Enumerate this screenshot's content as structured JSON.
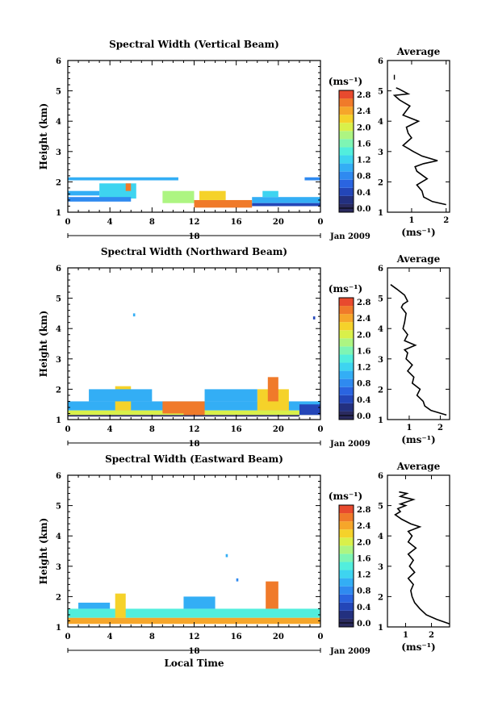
{
  "chart_data": [
    {
      "type": "heatmap",
      "title": "Spectral Width (Vertical Beam)",
      "ylabel": "Height (km)",
      "xlabel": "",
      "xticks": [
        "0",
        "4",
        "8",
        "12",
        "16",
        "20",
        "0"
      ],
      "yticks": [
        "1",
        "2",
        "3",
        "4",
        "5",
        "6"
      ],
      "xlim": [
        0,
        24
      ],
      "ylim": [
        1,
        6
      ],
      "date_axis_label": "18",
      "date_suffix": "Jan 2009",
      "colorbar": {
        "unit": "(ms⁻¹)",
        "ticks": [
          "2.8",
          "2.4",
          "2.0",
          "1.6",
          "1.2",
          "0.8",
          "0.4",
          "0.0"
        ],
        "range": [
          0,
          3.0
        ]
      },
      "cells": [
        {
          "t0": 0,
          "t1": 10.5,
          "h0": 2.05,
          "h1": 2.15,
          "v": 1.0
        },
        {
          "t0": 0,
          "t1": 3,
          "h0": 1.55,
          "h1": 1.7,
          "v": 1.1
        },
        {
          "t0": 3,
          "t1": 6.5,
          "h0": 1.45,
          "h1": 1.95,
          "v": 1.4
        },
        {
          "t0": 5.5,
          "t1": 6,
          "h0": 1.7,
          "h1": 1.95,
          "v": 2.6
        },
        {
          "t0": 0,
          "t1": 6,
          "h0": 1.35,
          "h1": 1.5,
          "v": 0.9
        },
        {
          "t0": 9,
          "t1": 12,
          "h0": 1.3,
          "h1": 1.7,
          "v": 1.8
        },
        {
          "t0": 12,
          "t1": 17.5,
          "h0": 1.15,
          "h1": 1.4,
          "v": 2.8
        },
        {
          "t0": 12.5,
          "t1": 15,
          "h0": 1.4,
          "h1": 1.7,
          "v": 2.2
        },
        {
          "t0": 17.5,
          "t1": 24,
          "h0": 1.3,
          "h1": 1.5,
          "v": 1.1
        },
        {
          "t0": 17.5,
          "t1": 24,
          "h0": 1.2,
          "h1": 1.3,
          "v": 0.6
        },
        {
          "t0": 22.5,
          "t1": 24,
          "h0": 2.05,
          "h1": 2.15,
          "v": 0.8
        },
        {
          "t0": 18.5,
          "t1": 20,
          "h0": 1.5,
          "h1": 1.7,
          "v": 1.3
        }
      ],
      "average": {
        "title": "Average",
        "xlabel": "(ms⁻¹)",
        "xticks": [
          "1",
          "2"
        ],
        "xlim": [
          0.3,
          2.1
        ],
        "yticks": [
          "1",
          "2",
          "3",
          "4",
          "5",
          "6"
        ],
        "x": [
          2.0,
          1.6,
          1.35,
          1.3,
          1.15,
          1.45,
          1.15,
          1.1,
          1.35,
          1.75,
          1.3,
          1.05,
          0.75,
          1.0,
          0.9,
          0.85,
          1.2,
          0.75,
          0.95,
          0.65,
          0.5,
          0.9,
          0.65,
          0.55
        ],
        "y": [
          1.25,
          1.35,
          1.5,
          1.7,
          1.9,
          2.1,
          2.35,
          2.5,
          2.6,
          2.7,
          2.85,
          3.0,
          3.2,
          3.45,
          3.6,
          3.8,
          4.0,
          4.2,
          4.5,
          4.7,
          4.85,
          4.9,
          5.05,
          5.1
        ],
        "extra_mark": {
          "x": 0.5,
          "y": 5.45
        }
      }
    },
    {
      "type": "heatmap",
      "title": "Spectral Width (Northward Beam)",
      "ylabel": "Height (km)",
      "xlabel": "",
      "xticks": [
        "0",
        "4",
        "8",
        "12",
        "16",
        "20",
        "0"
      ],
      "yticks": [
        "1",
        "2",
        "3",
        "4",
        "5",
        "6"
      ],
      "xlim": [
        0,
        24
      ],
      "ylim": [
        1,
        6
      ],
      "date_axis_label": "18",
      "date_suffix": "Jan 2009",
      "colorbar": {
        "unit": "(ms⁻¹)",
        "ticks": [
          "2.8",
          "2.4",
          "2.0",
          "1.6",
          "1.2",
          "0.8",
          "0.4",
          "0.0"
        ],
        "range": [
          0,
          3.0
        ]
      },
      "cells": [
        {
          "t0": 0,
          "t1": 24,
          "h0": 1.3,
          "h1": 1.6,
          "v": 1.2
        },
        {
          "t0": 0,
          "t1": 24,
          "h0": 1.15,
          "h1": 1.3,
          "v": 2.0
        },
        {
          "t0": 0,
          "t1": 22,
          "h0": 1.1,
          "h1": 1.15,
          "v": 0.0
        },
        {
          "t0": 4.5,
          "t1": 6,
          "h0": 1.3,
          "h1": 2.1,
          "v": 2.3
        },
        {
          "t0": 9,
          "t1": 13,
          "h0": 1.2,
          "h1": 1.6,
          "v": 2.6
        },
        {
          "t0": 11,
          "t1": 13,
          "h0": 1.15,
          "h1": 1.4,
          "v": 2.8
        },
        {
          "t0": 18,
          "t1": 21,
          "h0": 1.3,
          "h1": 2.0,
          "v": 2.2
        },
        {
          "t0": 19,
          "t1": 20,
          "h0": 1.6,
          "h1": 2.4,
          "v": 2.6
        },
        {
          "t0": 2,
          "t1": 8,
          "h0": 1.6,
          "h1": 2.0,
          "v": 1.0
        },
        {
          "t0": 13,
          "t1": 18,
          "h0": 1.6,
          "h1": 2.0,
          "v": 1.1
        },
        {
          "t0": 6.2,
          "t1": 6.4,
          "h0": 4.4,
          "h1": 4.5,
          "v": 1.1
        },
        {
          "t0": 23.3,
          "t1": 23.5,
          "h0": 4.3,
          "h1": 4.4,
          "v": 0.4
        },
        {
          "t0": 22,
          "t1": 24,
          "h0": 1.15,
          "h1": 1.5,
          "v": 0.6
        }
      ],
      "average": {
        "title": "Average",
        "xlabel": "(ms⁻¹)",
        "xticks": [
          "1",
          "2"
        ],
        "xlim": [
          0.3,
          2.3
        ],
        "yticks": [
          "1",
          "2",
          "3",
          "4",
          "5",
          "6"
        ],
        "x": [
          2.2,
          1.7,
          1.5,
          1.45,
          1.25,
          1.35,
          1.1,
          1.15,
          0.95,
          1.1,
          0.9,
          0.95,
          0.85,
          1.2,
          0.85,
          0.95,
          0.8,
          0.85,
          0.9,
          0.75,
          0.8,
          0.95,
          0.85,
          0.6,
          0.4
        ],
        "y": [
          1.15,
          1.3,
          1.45,
          1.6,
          1.8,
          2.0,
          2.2,
          2.4,
          2.6,
          2.8,
          3.0,
          3.2,
          3.3,
          3.45,
          3.6,
          3.8,
          4.0,
          4.2,
          4.5,
          4.7,
          4.8,
          4.9,
          5.1,
          5.3,
          5.45
        ]
      }
    },
    {
      "type": "heatmap",
      "title": "Spectral Width (Eastward Beam)",
      "ylabel": "Height (km)",
      "xlabel": "Local Time",
      "xticks": [
        "0",
        "4",
        "8",
        "12",
        "16",
        "20",
        "0"
      ],
      "yticks": [
        "1",
        "2",
        "3",
        "4",
        "5",
        "6"
      ],
      "xlim": [
        0,
        24
      ],
      "ylim": [
        1,
        6
      ],
      "date_axis_label": "18",
      "date_suffix": "Jan 2009",
      "colorbar": {
        "unit": "(ms⁻¹)",
        "ticks": [
          "2.8",
          "2.4",
          "2.0",
          "1.6",
          "1.2",
          "0.8",
          "0.4",
          "0.0"
        ],
        "range": [
          0,
          3.0
        ]
      },
      "cells": [
        {
          "t0": 0,
          "t1": 24,
          "h0": 1.3,
          "h1": 1.6,
          "v": 1.5
        },
        {
          "t0": 0,
          "t1": 24,
          "h0": 1.1,
          "h1": 1.3,
          "v": 2.5
        },
        {
          "t0": 4.5,
          "t1": 5.5,
          "h0": 1.3,
          "h1": 2.1,
          "v": 2.3
        },
        {
          "t0": 11,
          "t1": 14,
          "h0": 1.6,
          "h1": 2.0,
          "v": 1.2
        },
        {
          "t0": 18.8,
          "t1": 20,
          "h0": 1.6,
          "h1": 2.5,
          "v": 2.6
        },
        {
          "t0": 15,
          "t1": 15.2,
          "h0": 3.3,
          "h1": 3.4,
          "v": 1.2
        },
        {
          "t0": 16,
          "t1": 16.2,
          "h0": 2.5,
          "h1": 2.6,
          "v": 0.9
        },
        {
          "t0": 1,
          "t1": 4,
          "h0": 1.6,
          "h1": 1.8,
          "v": 1.0
        }
      ],
      "average": {
        "title": "Average",
        "xlabel": "(ms⁻¹)",
        "xticks": [
          "1",
          "2"
        ],
        "xlim": [
          0.3,
          2.7
        ],
        "yticks": [
          "1",
          "2",
          "3",
          "4",
          "5",
          "6"
        ],
        "x": [
          2.7,
          2.2,
          1.8,
          1.55,
          1.35,
          1.25,
          1.2,
          1.3,
          1.1,
          1.35,
          1.15,
          1.3,
          1.1,
          1.4,
          1.1,
          1.25,
          1.1,
          1.55,
          1.2,
          0.85,
          0.6,
          0.8,
          0.7,
          1.0,
          0.8,
          1.3,
          0.8,
          1.05,
          0.75
        ],
        "y": [
          1.1,
          1.25,
          1.4,
          1.6,
          1.8,
          2.0,
          2.2,
          2.4,
          2.6,
          2.8,
          3.0,
          3.2,
          3.4,
          3.6,
          3.8,
          4.0,
          4.15,
          4.3,
          4.4,
          4.55,
          4.7,
          4.8,
          4.9,
          5.0,
          5.05,
          5.2,
          5.3,
          5.4,
          5.45
        ]
      }
    }
  ]
}
